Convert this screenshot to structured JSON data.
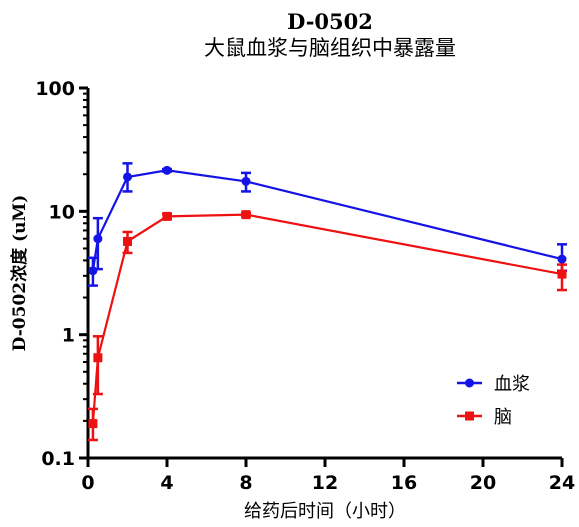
{
  "chart_data": {
    "type": "line",
    "title": "D-0502",
    "subtitle": "大鼠血浆与脑组织中暴露量",
    "xlabel": "给药后时间（小时）",
    "ylabel": "D-0502浓度 (uM)",
    "xlim": [
      0,
      24
    ],
    "ylim": [
      0.1,
      100
    ],
    "y_scale": "log",
    "x_ticks": [
      0,
      4,
      8,
      12,
      16,
      20,
      24
    ],
    "y_ticks": [
      0.1,
      1,
      10,
      100
    ],
    "y_tick_labels": [
      "0.1",
      "1",
      "10",
      "100"
    ],
    "legend_position": "bottom-right",
    "grid": false,
    "series": [
      {
        "name": "血浆",
        "color": "#1414e6",
        "marker": "circle",
        "x": [
          0.25,
          0.5,
          2,
          4,
          8,
          24
        ],
        "y": [
          3.3,
          6.0,
          19.0,
          21.5,
          17.5,
          4.1
        ],
        "err_low": [
          2.5,
          3.4,
          14.5,
          21.0,
          14.5,
          3.3
        ],
        "err_high": [
          4.2,
          8.8,
          24.5,
          22.0,
          20.5,
          5.4
        ]
      },
      {
        "name": "脑",
        "color": "#ee1111",
        "marker": "square",
        "x": [
          0.25,
          0.5,
          2,
          4,
          8,
          24
        ],
        "y": [
          0.19,
          0.65,
          5.7,
          9.1,
          9.4,
          3.1
        ],
        "err_low": [
          0.14,
          0.33,
          4.6,
          8.7,
          9.1,
          2.3
        ],
        "err_high": [
          0.25,
          0.97,
          6.8,
          9.5,
          9.7,
          3.7
        ]
      }
    ]
  }
}
